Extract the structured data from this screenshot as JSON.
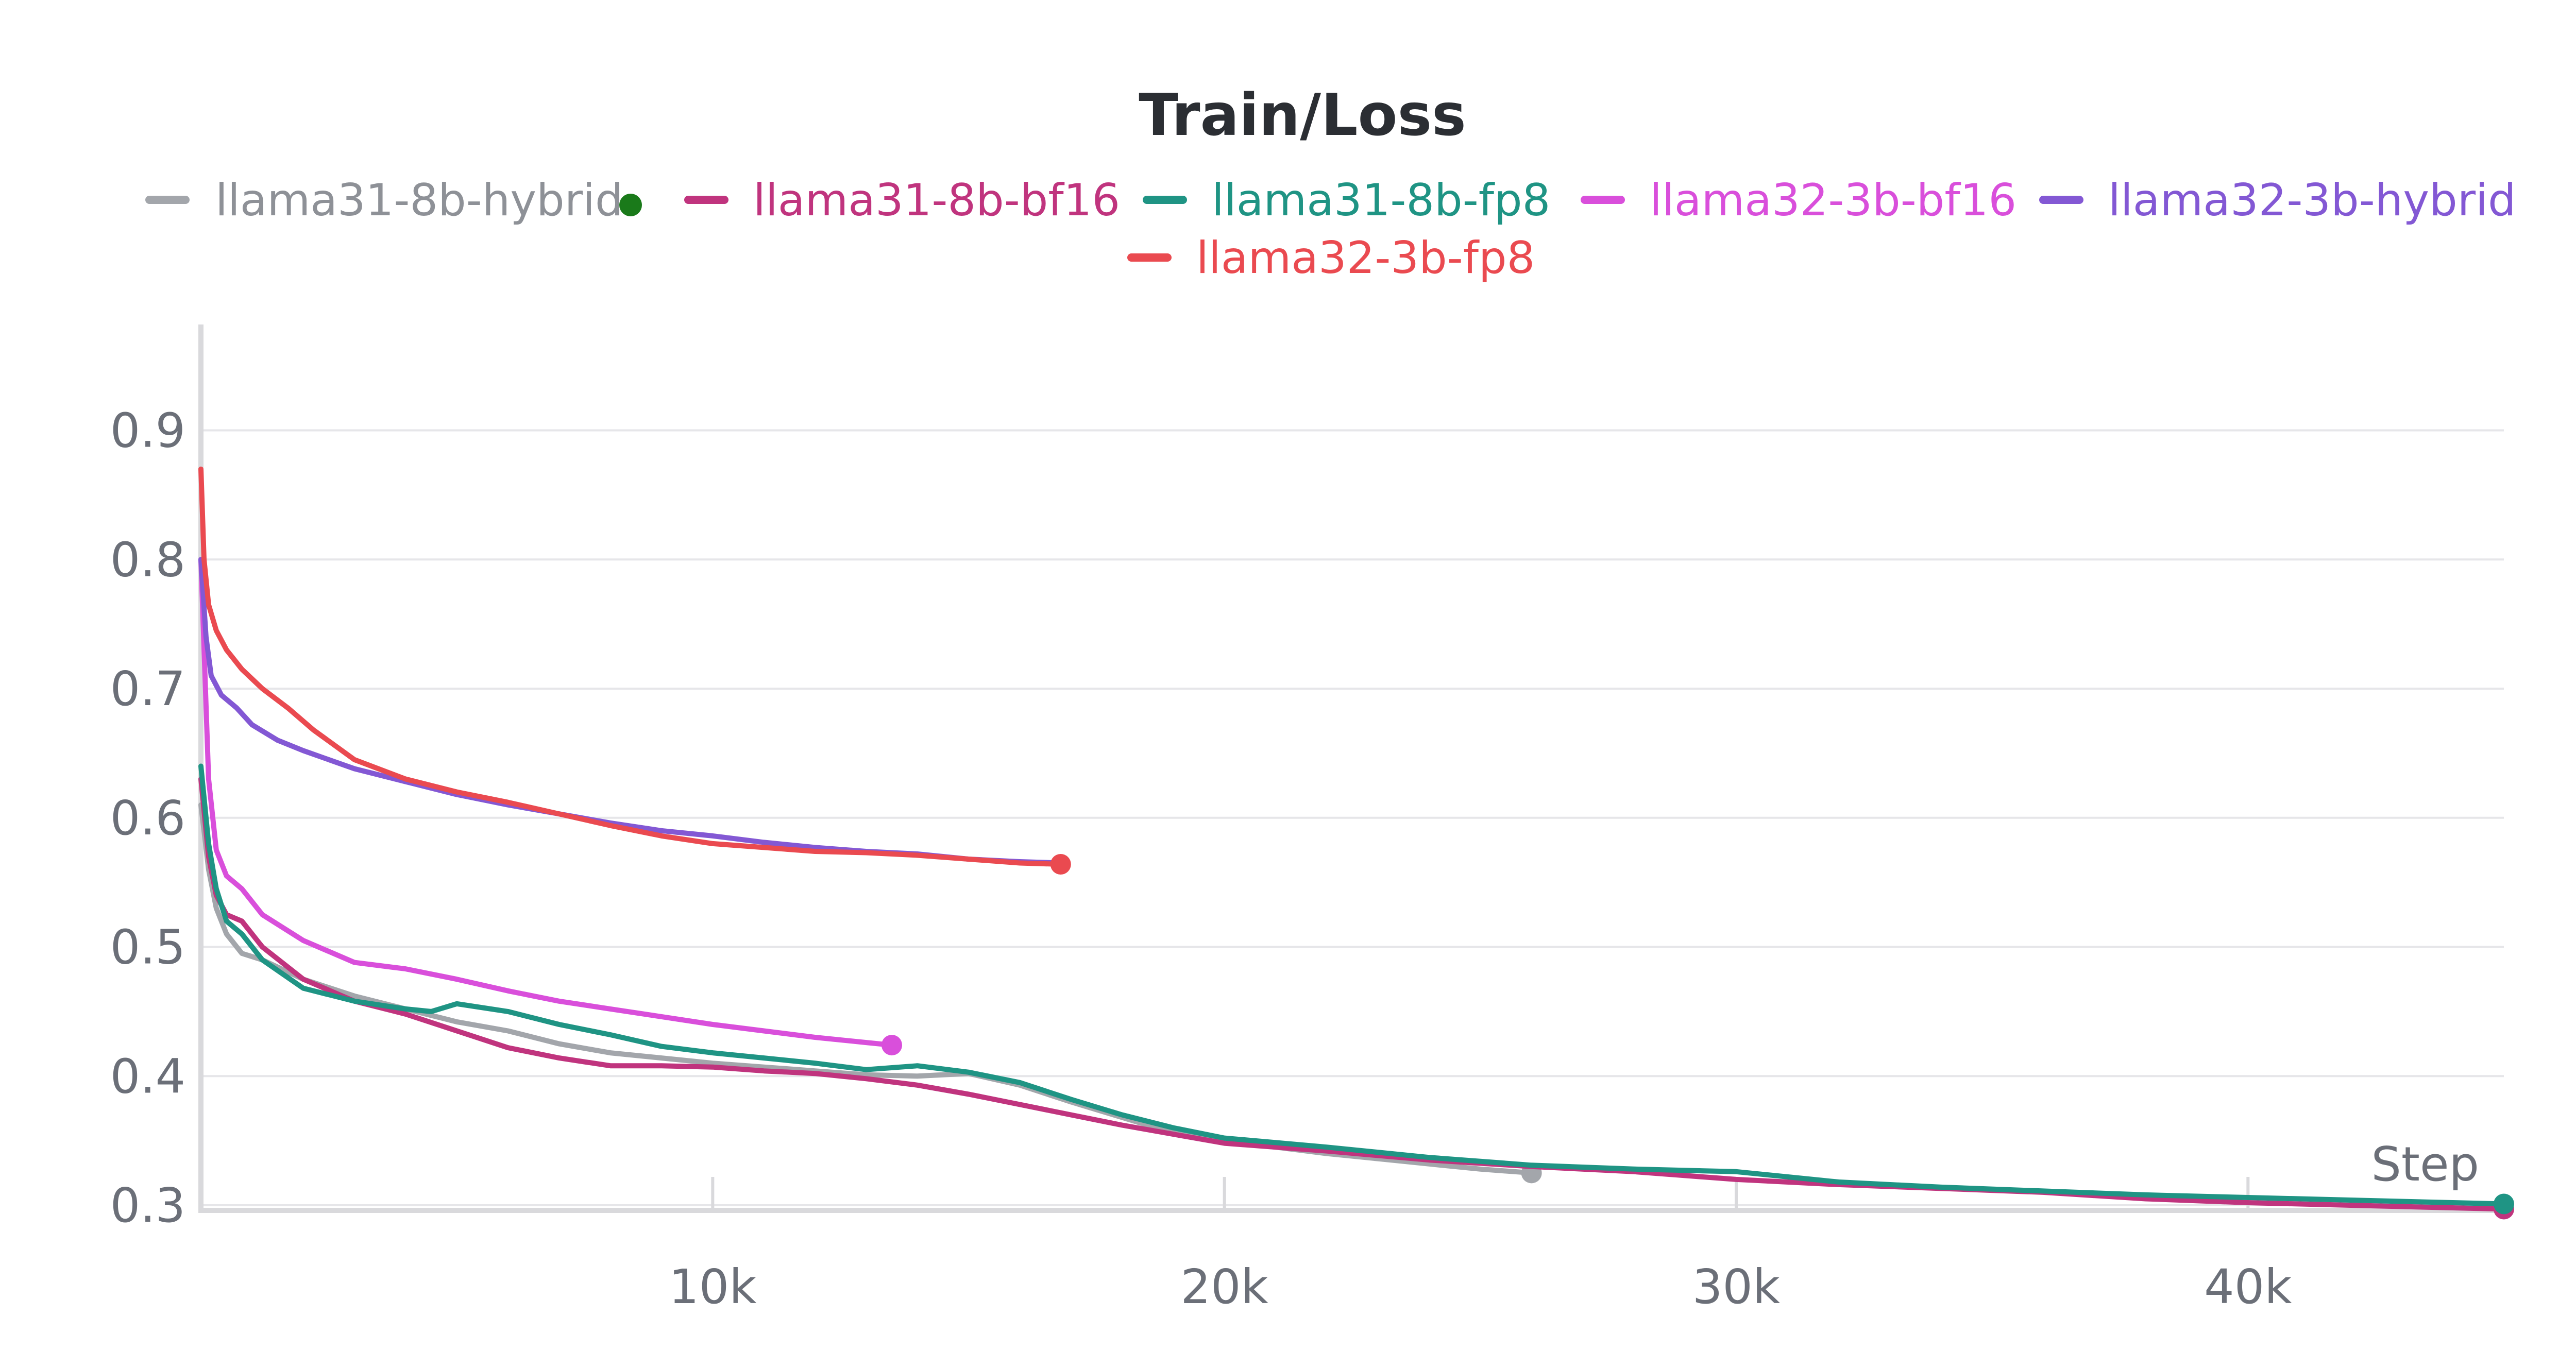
{
  "chart_data": {
    "type": "line",
    "title": "Train/Loss",
    "xlabel": "Step",
    "ylabel": "",
    "xlim": [
      0,
      45000
    ],
    "ylim": [
      0.3,
      0.97
    ],
    "x_ticks": [
      10000,
      20000,
      30000,
      40000
    ],
    "x_tick_labels": [
      "10k",
      "20k",
      "30k",
      "40k"
    ],
    "y_ticks": [
      0.3,
      0.4,
      0.5,
      0.6,
      0.7,
      0.8,
      0.9
    ],
    "y_tick_labels": [
      "0.3",
      "0.4",
      "0.5",
      "0.6",
      "0.7",
      "0.8",
      "0.9"
    ],
    "grid": true,
    "legend_position": "top",
    "series": [
      {
        "name": "llama31-8b-hybrid",
        "color": "#a3a6ab",
        "end_marker": true,
        "x": [
          0,
          150,
          300,
          500,
          800,
          1200,
          2000,
          3000,
          4000,
          5000,
          6000,
          7000,
          8000,
          9000,
          10000,
          11000,
          12000,
          13000,
          14000,
          15000,
          16000,
          17000,
          18000,
          19000,
          20000,
          21000,
          22000,
          23000,
          24000,
          25000,
          26000
        ],
        "y": [
          0.61,
          0.56,
          0.53,
          0.51,
          0.495,
          0.49,
          0.475,
          0.462,
          0.452,
          0.442,
          0.435,
          0.425,
          0.418,
          0.414,
          0.41,
          0.407,
          0.404,
          0.401,
          0.4,
          0.402,
          0.393,
          0.38,
          0.368,
          0.356,
          0.349,
          0.345,
          0.34,
          0.336,
          0.332,
          0.328,
          0.325
        ]
      },
      {
        "name": "llama31-8b-bf16",
        "color": "#c0347e",
        "end_marker": true,
        "x": [
          0,
          150,
          300,
          500,
          800,
          1200,
          2000,
          3000,
          4000,
          5000,
          6000,
          7000,
          8000,
          9000,
          10000,
          11000,
          12000,
          13000,
          14000,
          15000,
          16000,
          17000,
          18000,
          19000,
          20000,
          22000,
          24000,
          26000,
          28000,
          30000,
          32000,
          34000,
          36000,
          38000,
          40000,
          42000,
          44000,
          45000
        ],
        "y": [
          0.63,
          0.57,
          0.54,
          0.525,
          0.52,
          0.5,
          0.475,
          0.458,
          0.448,
          0.435,
          0.422,
          0.414,
          0.408,
          0.408,
          0.407,
          0.404,
          0.402,
          0.398,
          0.393,
          0.386,
          0.378,
          0.37,
          0.362,
          0.355,
          0.348,
          0.342,
          0.335,
          0.33,
          0.326,
          0.32,
          0.316,
          0.313,
          0.31,
          0.305,
          0.302,
          0.3,
          0.298,
          0.297
        ]
      },
      {
        "name": "llama31-8b-fp8",
        "color": "#1f9484",
        "end_marker": true,
        "x": [
          0,
          150,
          300,
          500,
          800,
          1200,
          2000,
          3000,
          4000,
          4500,
          5000,
          6000,
          7000,
          8000,
          9000,
          10000,
          11000,
          12000,
          13000,
          14000,
          15000,
          16000,
          17000,
          18000,
          19000,
          20000,
          22000,
          24000,
          26000,
          28000,
          30000,
          32000,
          34000,
          36000,
          38000,
          40000,
          42000,
          44000,
          45000
        ],
        "y": [
          0.64,
          0.58,
          0.545,
          0.52,
          0.51,
          0.49,
          0.468,
          0.458,
          0.452,
          0.45,
          0.456,
          0.45,
          0.44,
          0.432,
          0.423,
          0.418,
          0.414,
          0.41,
          0.405,
          0.408,
          0.403,
          0.395,
          0.382,
          0.37,
          0.36,
          0.352,
          0.345,
          0.337,
          0.331,
          0.328,
          0.326,
          0.318,
          0.314,
          0.311,
          0.308,
          0.306,
          0.304,
          0.302,
          0.301
        ]
      },
      {
        "name": "llama32-3b-bf16",
        "color": "#d94fdb",
        "end_marker": true,
        "x": [
          0,
          150,
          300,
          500,
          800,
          1200,
          2000,
          3000,
          4000,
          5000,
          6000,
          7000,
          8000,
          9000,
          10000,
          11000,
          12000,
          13000,
          13500
        ],
        "y": [
          0.8,
          0.63,
          0.575,
          0.555,
          0.545,
          0.525,
          0.505,
          0.488,
          0.483,
          0.475,
          0.466,
          0.458,
          0.452,
          0.446,
          0.44,
          0.435,
          0.43,
          0.426,
          0.424
        ]
      },
      {
        "name": "llama32-3b-hybrid",
        "color": "#8358d4",
        "end_marker": false,
        "x": [
          0,
          100,
          200,
          400,
          700,
          1000,
          1500,
          2000,
          3000,
          4000,
          5000,
          6000,
          7000,
          8000,
          9000,
          10000,
          11000,
          12000,
          13000,
          14000,
          15000,
          16000,
          16800
        ],
        "y": [
          0.8,
          0.74,
          0.71,
          0.695,
          0.685,
          0.672,
          0.66,
          0.652,
          0.638,
          0.628,
          0.618,
          0.61,
          0.603,
          0.596,
          0.59,
          0.586,
          0.581,
          0.577,
          0.574,
          0.572,
          0.568,
          0.566,
          0.565
        ]
      },
      {
        "name": "llama32-3b-fp8",
        "color": "#ea4a50",
        "end_marker": true,
        "x": [
          0,
          60,
          150,
          300,
          500,
          800,
          1200,
          1700,
          2200,
          3000,
          4000,
          5000,
          6000,
          7000,
          8000,
          9000,
          10000,
          11000,
          12000,
          13000,
          14000,
          15000,
          16000,
          16800
        ],
        "y": [
          0.87,
          0.8,
          0.765,
          0.745,
          0.73,
          0.715,
          0.7,
          0.685,
          0.668,
          0.645,
          0.63,
          0.62,
          0.612,
          0.603,
          0.594,
          0.586,
          0.58,
          0.577,
          0.574,
          0.573,
          0.571,
          0.568,
          0.565,
          0.564
        ]
      }
    ]
  }
}
